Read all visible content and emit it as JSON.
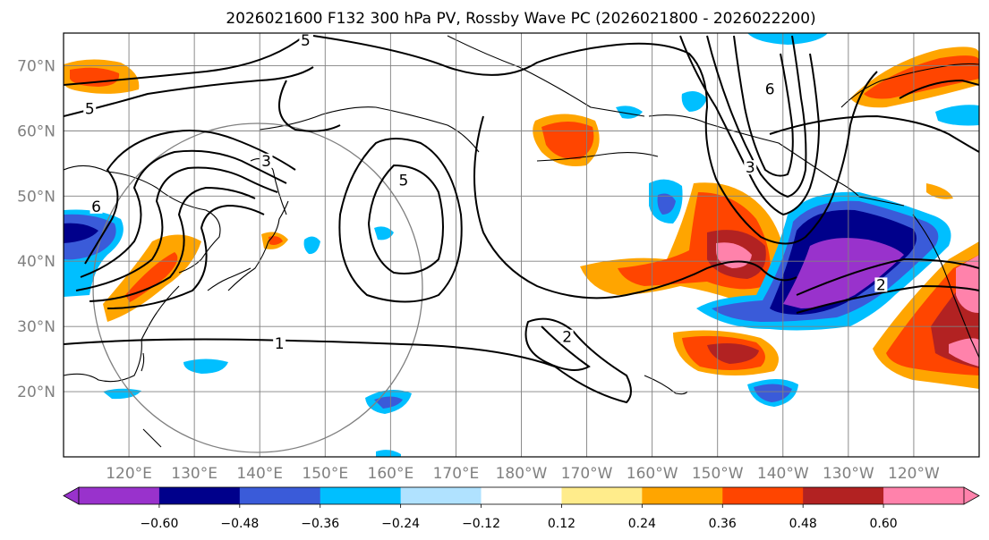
{
  "title": "2026021600 F132 300 hPa PV, Rossby Wave PC (2026021800 - 2026022200)",
  "map": {
    "lon_range": [
      110,
      250
    ],
    "lat_range": [
      10,
      75
    ],
    "lat_labels": [
      "70°N",
      "60°N",
      "50°N",
      "40°N",
      "30°N",
      "20°N"
    ],
    "lat_values": [
      70,
      60,
      50,
      40,
      30,
      20
    ],
    "lon_labels": [
      "120°E",
      "130°E",
      "140°E",
      "150°E",
      "160°E",
      "170°E",
      "180°W",
      "170°W",
      "160°W",
      "150°W",
      "140°W",
      "130°W",
      "120°W"
    ],
    "lon_values": [
      120,
      130,
      140,
      150,
      160,
      170,
      180,
      190,
      200,
      210,
      220,
      230,
      240
    ]
  },
  "contour_labels": [
    {
      "text": "5",
      "lon": 147,
      "lat": 73.5
    },
    {
      "text": "5",
      "lon": 114,
      "lat": 63
    },
    {
      "text": "6",
      "lon": 115,
      "lat": 48
    },
    {
      "text": "3",
      "lon": 141,
      "lat": 55
    },
    {
      "text": "5",
      "lon": 162,
      "lat": 52
    },
    {
      "text": "1",
      "lon": 143,
      "lat": 27
    },
    {
      "text": "2",
      "lon": 187,
      "lat": 28
    },
    {
      "text": "6",
      "lon": 218,
      "lat": 66
    },
    {
      "text": "3",
      "lon": 215,
      "lat": 54
    },
    {
      "text": "2",
      "lon": 235,
      "lat": 36
    }
  ],
  "colorbar": {
    "colors": [
      "#9932CC",
      "#00008B",
      "#3A5BD9",
      "#00BFFF",
      "#B0E2FF",
      "#FFFFFF",
      "#FFEC8B",
      "#FFA500",
      "#FF4500",
      "#B22222",
      "#FF82AB"
    ],
    "extend_min_color": "#9932CC",
    "extend_max_color": "#FF82AB",
    "tick_labels": [
      "−0.60",
      "−0.48",
      "−0.36",
      "−0.24",
      "−0.12",
      "0.12",
      "0.24",
      "0.36",
      "0.48",
      "0.60"
    ]
  }
}
